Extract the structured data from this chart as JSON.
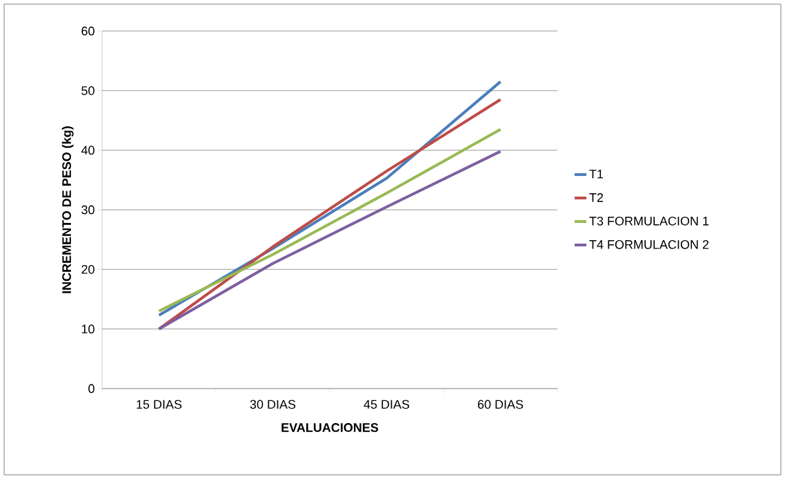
{
  "chart_data": {
    "type": "line",
    "xlabel": "EVALUACIONES",
    "ylabel": "INCREMENTO DE PESO (kg)",
    "categories": [
      "15 DIAS",
      "30 DIAS",
      "45 DIAS",
      "60 DIAS"
    ],
    "series": [
      {
        "name": "T1",
        "color": "#4a7ebb",
        "values": [
          12.3,
          23.5,
          35.3,
          51.5
        ]
      },
      {
        "name": "T2",
        "color": "#be4b48",
        "values": [
          10,
          23.8,
          36.5,
          48.5
        ]
      },
      {
        "name": "T3 FORMULACION 1",
        "color": "#98b954",
        "values": [
          13,
          22.5,
          32.8,
          43.5
        ]
      },
      {
        "name": "T4 FORMULACION 2",
        "color": "#7d5fa0",
        "values": [
          10,
          21,
          30.5,
          39.8
        ]
      }
    ],
    "ylim": [
      0,
      60
    ],
    "yticks": [
      0,
      10,
      20,
      30,
      40,
      50,
      60
    ],
    "grid": "y",
    "legend": "right",
    "marker": "none",
    "line_style": "solid"
  }
}
